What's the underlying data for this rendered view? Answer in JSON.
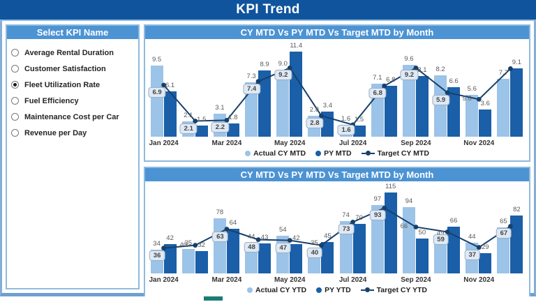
{
  "banner": {
    "title": "KPI Trend"
  },
  "kpi_panel": {
    "header": "Select KPI Name",
    "options": [
      {
        "label": "Average Rental Duration",
        "selected": false
      },
      {
        "label": "Customer Satisfaction",
        "selected": false
      },
      {
        "label": "Fleet Utilization Rate",
        "selected": true
      },
      {
        "label": "Fuel Efficiency",
        "selected": false
      },
      {
        "label": "Maintenance Cost per Car",
        "selected": false
      },
      {
        "label": "Revenue per Day",
        "selected": false
      }
    ]
  },
  "colors": {
    "banner_bg": "#10549D",
    "section_header_bg": "#4C93D3",
    "actual_bar": "#9CC3E8",
    "py_bar": "#1A5FA8",
    "target_line": "#17406B",
    "panel_border": "#8FBADF",
    "page_border": "#6E9FD2",
    "bottom_accent": "#1C7C74"
  },
  "chart_data": [
    {
      "type": "bar",
      "title": "CY MTD Vs PY MTD Vs Target MTD by Month",
      "xlabel": "",
      "ylabel": "",
      "categories": [
        "Jan 2024",
        "Feb 2024",
        "Mar 2024",
        "Apr 2024",
        "May 2024",
        "Jun 2024",
        "Jul 2024",
        "Aug 2024",
        "Sep 2024",
        "Oct 2024",
        "Nov 2024",
        "Dec 2024"
      ],
      "x_tick_labels": [
        "Jan 2024",
        "Mar 2024",
        "May 2024",
        "Jul 2024",
        "Sep 2024",
        "Nov 2024"
      ],
      "decimals": 1,
      "ylim": [
        0,
        12.5
      ],
      "grid": false,
      "legend_position": "bottom",
      "series": [
        {
          "name": "Actual CY MTD",
          "render": "bar",
          "color": "#9CC3E8",
          "values": [
            9.5,
            2.1,
            3.1,
            7.3,
            9.0,
            2.8,
            1.6,
            7.1,
            9.6,
            8.2,
            5.6,
            7.7
          ]
        },
        {
          "name": "PY MTD",
          "render": "bar",
          "color": "#1A5FA8",
          "values": [
            6.1,
            1.5,
            1.8,
            8.9,
            11.4,
            3.4,
            1.5,
            6.8,
            8.1,
            6.6,
            3.6,
            9.1
          ]
        },
        {
          "name": "Target CY MTD",
          "render": "line",
          "color": "#17406B",
          "values": [
            6.9,
            2.1,
            2.2,
            7.4,
            9.2,
            2.8,
            1.6,
            6.8,
            9.2,
            5.9,
            5.0,
            9.1
          ],
          "target_label_styles": [
            "box",
            "box",
            "box",
            "box",
            "box",
            "box",
            "box",
            "box",
            "box",
            "box",
            "plain",
            "hidden"
          ]
        }
      ]
    },
    {
      "type": "bar",
      "title": "CY MTD Vs PY MTD Vs Target MTD by Month",
      "xlabel": "",
      "ylabel": "",
      "categories": [
        "Jan 2024",
        "Feb 2024",
        "Mar 2024",
        "Apr 2024",
        "May 2024",
        "Jun 2024",
        "Jul 2024",
        "Aug 2024",
        "Sep 2024",
        "Oct 2024",
        "Nov 2024",
        "Dec 2024"
      ],
      "x_tick_labels": [
        "Jan 2024",
        "Mar 2024",
        "May 2024",
        "Jul 2024",
        "Sep 2024",
        "Nov 2024"
      ],
      "decimals": 0,
      "ylim": [
        0,
        125
      ],
      "grid": false,
      "legend_position": "bottom",
      "series": [
        {
          "name": "Actual CY YTD",
          "render": "bar",
          "color": "#9CC3E8",
          "values": [
            34,
            35,
            78,
            44,
            54,
            35,
            74,
            97,
            94,
            49,
            44,
            65
          ]
        },
        {
          "name": "PY YTD",
          "render": "bar",
          "color": "#1A5FA8",
          "values": [
            42,
            32,
            64,
            43,
            42,
            45,
            70,
            115,
            50,
            66,
            29,
            82
          ]
        },
        {
          "name": "Target CY YTD",
          "render": "line",
          "color": "#17406B",
          "values": [
            36,
            40,
            63,
            48,
            47,
            40,
            73,
            93,
            66,
            59,
            37,
            67
          ],
          "target_label_styles": [
            "box",
            "plain",
            "box",
            "box",
            "box",
            "box",
            "box",
            "box",
            "plain",
            "box",
            "box",
            "box"
          ]
        }
      ]
    }
  ]
}
